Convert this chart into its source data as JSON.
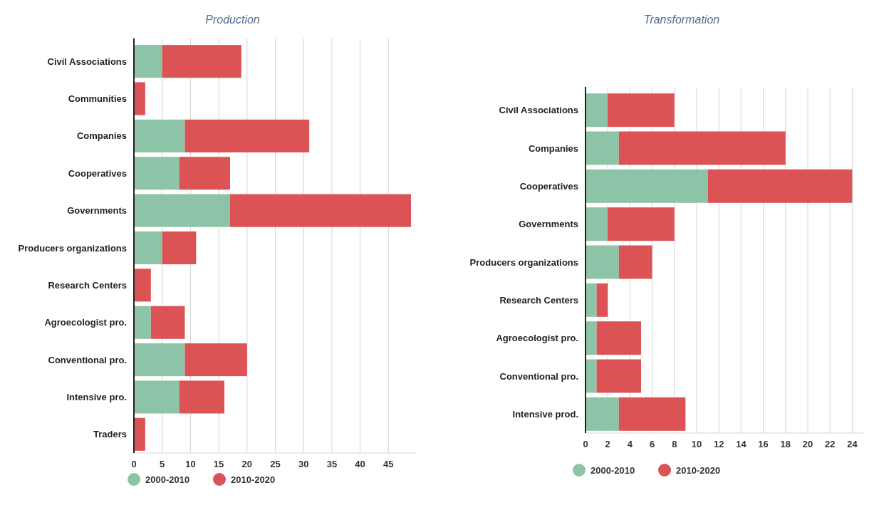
{
  "chart_data": [
    {
      "type": "bar",
      "title": "Production",
      "orientation": "horizontal",
      "stacked": true,
      "categories": [
        "Civil Associations",
        "Communities",
        "Companies",
        "Cooperatives",
        "Governments",
        "Producers organizations",
        "Research Centers",
        "Agroecologist pro.",
        "Conventional pro.",
        "Intensive pro.",
        "Traders"
      ],
      "series": [
        {
          "name": "2000-2010",
          "color": "#8dc3a7",
          "values": [
            5,
            0,
            9,
            8,
            17,
            5,
            0,
            3,
            9,
            8,
            0
          ]
        },
        {
          "name": "2010-2020",
          "color": "#dc5355",
          "values": [
            14,
            2,
            22,
            9,
            32,
            6,
            3,
            6,
            11,
            8,
            2
          ]
        }
      ],
      "xlim": [
        0,
        50
      ],
      "xticks": [
        0,
        5,
        10,
        15,
        20,
        25,
        30,
        35,
        40,
        45
      ],
      "grid": "x",
      "legend": "bottom"
    },
    {
      "type": "bar",
      "title": "Transformation",
      "orientation": "horizontal",
      "stacked": true,
      "categories": [
        "Civil Associations",
        "Companies",
        "Cooperatives",
        "Governments",
        "Producers organizations",
        "Research Centers",
        "Agroecologist pro.",
        "Conventional pro.",
        "Intensive prod."
      ],
      "series": [
        {
          "name": "2000-2010",
          "color": "#8dc3a7",
          "values": [
            2,
            3,
            11,
            2,
            3,
            1,
            1,
            1,
            3
          ]
        },
        {
          "name": "2010-2020",
          "color": "#dc5355",
          "values": [
            6,
            15,
            13,
            6,
            3,
            1,
            4,
            4,
            6
          ]
        }
      ],
      "xlim": [
        0,
        25
      ],
      "xticks": [
        0,
        2,
        4,
        6,
        8,
        10,
        12,
        14,
        16,
        18,
        20,
        22,
        24
      ],
      "grid": "x",
      "legend": "bottom"
    }
  ]
}
